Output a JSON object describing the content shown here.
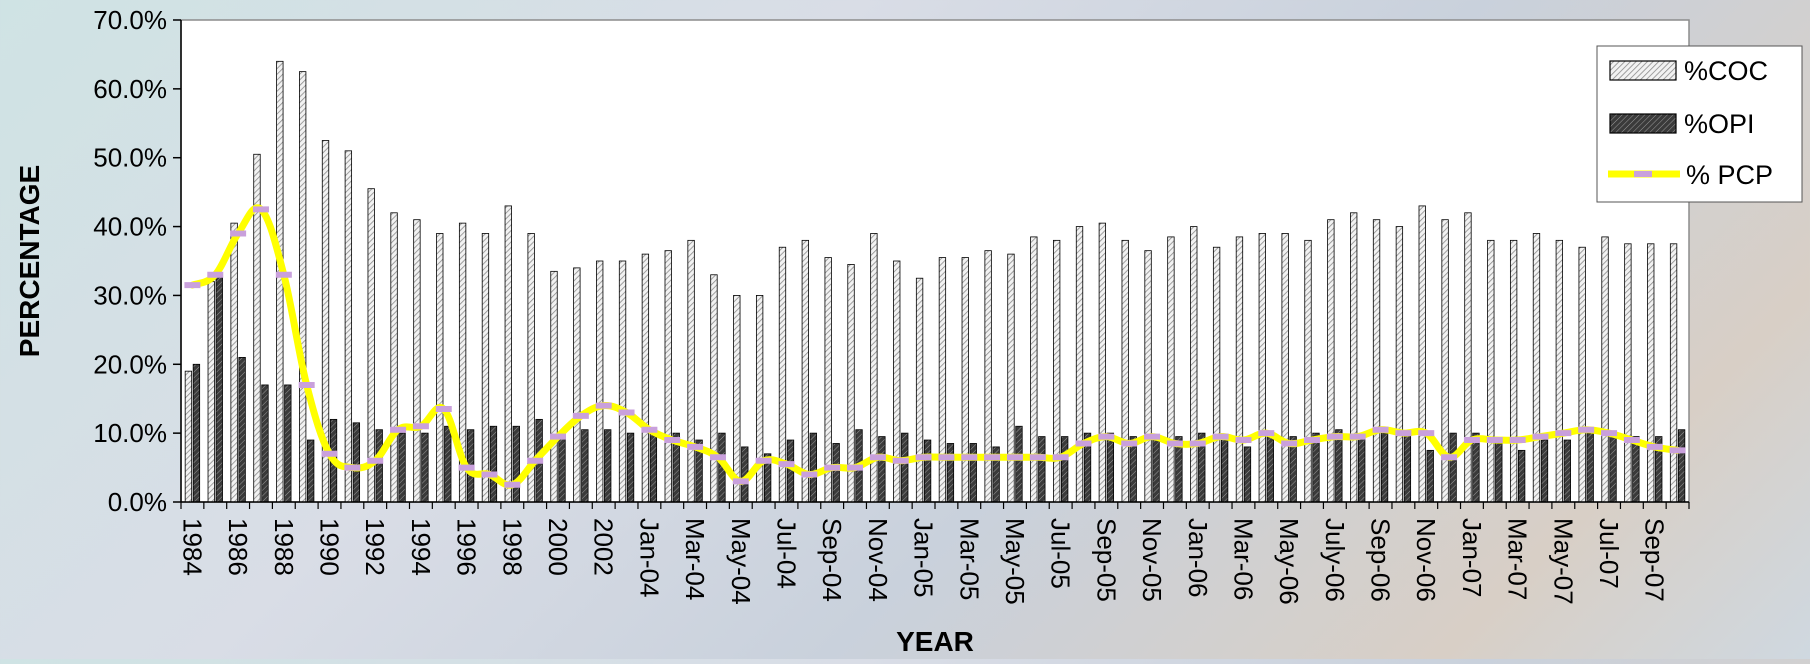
{
  "chart_data": {
    "type": "bar",
    "xlabel": "YEAR",
    "ylabel": "PERCENTAGE",
    "ylim": [
      0,
      70
    ],
    "yticks": [
      "0.0%",
      "10.0%",
      "20.0%",
      "30.0%",
      "40.0%",
      "50.0%",
      "60.0%",
      "70.0%"
    ],
    "grid": false,
    "legend_position": "top-right",
    "categories": [
      "1984",
      "1985",
      "1986",
      "1987",
      "1988",
      "1989",
      "1990",
      "1991",
      "1992",
      "1993",
      "1994",
      "1995",
      "1996",
      "1997",
      "1998",
      "1999",
      "2000",
      "2001",
      "2002",
      "2003",
      "Jan-04",
      "Feb-04",
      "Mar-04",
      "Apr-04",
      "May-04",
      "Jun-04",
      "Jul-04",
      "Aug-04",
      "Sep-04",
      "Oct-04",
      "Nov-04",
      "Dec-04",
      "Jan-05",
      "Feb-05",
      "Mar-05",
      "Apr-05",
      "May-05",
      "Jun-05",
      "Jul-05",
      "Aug-05",
      "Sep-05",
      "Oct-05",
      "Nov-05",
      "Dec-05",
      "Jan-06",
      "Feb-06",
      "Mar-06",
      "Apr-06",
      "May-06",
      "Jun-06",
      "July-06",
      "Aug-06",
      "Sep-06",
      "Oct-06",
      "Nov-06",
      "Dec-06",
      "Jan-07",
      "Feb-07",
      "Mar-07",
      "Apr-07",
      "May-07",
      "Jun-07",
      "Jul-07",
      "Aug-07",
      "Sep-07",
      "Oct-07"
    ],
    "tick_labels": [
      "1984",
      "",
      "1986",
      "",
      "1988",
      "",
      "1990",
      "",
      "1992",
      "",
      "1994",
      "",
      "1996",
      "",
      "1998",
      "",
      "2000",
      "",
      "2002",
      "",
      "Jan-04",
      "",
      "Mar-04",
      "",
      "May-04",
      "",
      "Jul-04",
      "",
      "Sep-04",
      "",
      "Nov-04",
      "",
      "Jan-05",
      "",
      "Mar-05",
      "",
      "May-05",
      "",
      "Jul-05",
      "",
      "Sep-05",
      "",
      "Nov-05",
      "",
      "Jan-06",
      "",
      "Mar-06",
      "",
      "May-06",
      "",
      "July-06",
      "",
      "Sep-06",
      "",
      "Nov-06",
      "",
      "Jan-07",
      "",
      "Mar-07",
      "",
      "May-07",
      "",
      "Jul-07",
      "",
      "Sep-07",
      ""
    ],
    "series": [
      {
        "name": "%COC",
        "kind": "bar",
        "pattern": "light-hatch",
        "values": [
          19,
          32,
          40.5,
          50.5,
          64,
          62.5,
          52.5,
          51,
          45.5,
          42,
          41,
          39,
          40.5,
          39,
          43,
          39,
          33.5,
          34,
          35,
          35,
          36,
          36.5,
          38,
          33,
          30,
          30,
          37,
          38,
          35.5,
          34.5,
          39,
          35,
          32.5,
          35.5,
          35.5,
          36.5,
          36,
          38.5,
          38,
          40,
          40.5,
          38,
          36.5,
          38.5,
          40,
          37,
          38.5,
          39,
          39,
          38,
          41,
          42,
          41,
          40,
          43,
          41,
          42,
          38,
          38,
          39,
          38,
          37,
          38.5,
          37.5,
          37.5,
          37.5
        ]
      },
      {
        "name": "%OPI",
        "kind": "bar",
        "pattern": "dark-hatch",
        "values": [
          20,
          33,
          21,
          17,
          17,
          9,
          12,
          11.5,
          10.5,
          10,
          10,
          11,
          10.5,
          11,
          11,
          12,
          9.5,
          10.5,
          10.5,
          10,
          10.5,
          10,
          9,
          10,
          8,
          7,
          9,
          10,
          8.5,
          10.5,
          9.5,
          10,
          9,
          8.5,
          8.5,
          8,
          11,
          9.5,
          9.5,
          10,
          10,
          9.5,
          9.5,
          9.5,
          10,
          9.5,
          8,
          10,
          9.5,
          10,
          10.5,
          9.5,
          10,
          10,
          7.5,
          10,
          10,
          9,
          7.5,
          9,
          9,
          10,
          10,
          9.5,
          9.5,
          10.5
        ]
      },
      {
        "name": "% PCP",
        "kind": "line",
        "color": "#ffff00",
        "marker_color": "#c9a0dc",
        "values": [
          31.5,
          33,
          39,
          42.5,
          33,
          17,
          7,
          5,
          6,
          10.5,
          11,
          13.5,
          5,
          4,
          2.5,
          6,
          9.5,
          12.5,
          14,
          13,
          10.5,
          9,
          8,
          6.5,
          3,
          6,
          5.5,
          4,
          5,
          5,
          6.5,
          6,
          6.5,
          6.5,
          6.5,
          6.5,
          6.5,
          6.5,
          6.5,
          8.5,
          9.5,
          8.5,
          9.5,
          8.5,
          8.5,
          9.5,
          9,
          10,
          8.5,
          9,
          9.5,
          9.5,
          10.5,
          10,
          10,
          6.5,
          9,
          9,
          9,
          9.5,
          10,
          10.5,
          10,
          9,
          8,
          7.5
        ]
      }
    ]
  }
}
